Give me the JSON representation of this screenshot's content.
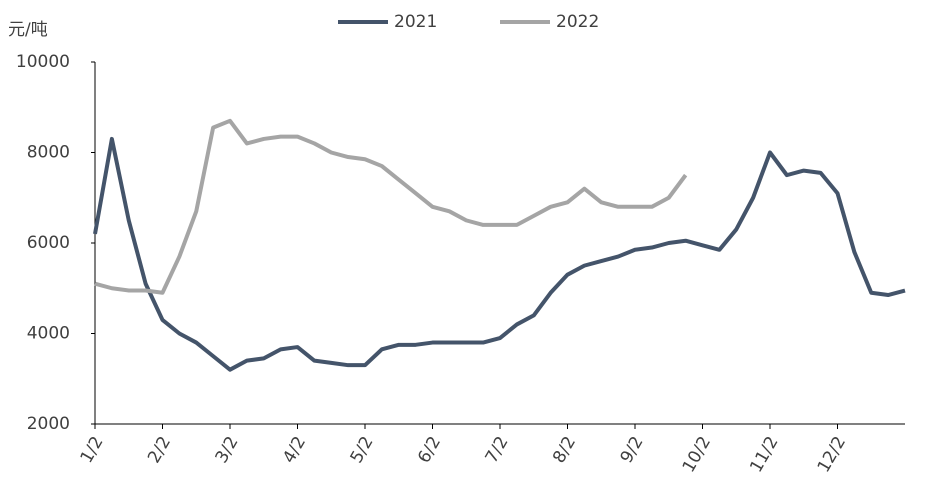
{
  "chart_data": {
    "type": "line",
    "y_label": "元/吨",
    "categories": [
      "1/2",
      null,
      null,
      null,
      "2/2",
      null,
      null,
      null,
      "3/2",
      null,
      null,
      null,
      "4/2",
      null,
      null,
      null,
      "5/2",
      null,
      null,
      null,
      "6/2",
      null,
      null,
      null,
      "7/2",
      null,
      null,
      null,
      "8/2",
      null,
      null,
      null,
      "9/2",
      null,
      null,
      null,
      "10/2",
      null,
      null,
      null,
      "11/2",
      null,
      null,
      null,
      "12/2",
      null,
      null,
      null,
      null
    ],
    "series": [
      {
        "name": "2021",
        "color": "#44546a",
        "values": [
          6200,
          8300,
          6500,
          5100,
          4300,
          4000,
          3800,
          3500,
          3200,
          3400,
          3450,
          3650,
          3700,
          3400,
          3350,
          3300,
          3300,
          3650,
          3750,
          3750,
          3800,
          3800,
          3800,
          3800,
          3900,
          4200,
          4400,
          4900,
          5300,
          5500,
          5600,
          5700,
          5850,
          5900,
          6000,
          6050,
          5950,
          5850,
          6300,
          7000,
          8000,
          7500,
          7600,
          7550,
          7100,
          5800,
          4900,
          4850,
          4950
        ]
      },
      {
        "name": "2022",
        "color": "#a5a5a5",
        "values": [
          5100,
          5000,
          4950,
          4950,
          4900,
          5700,
          6700,
          8550,
          8700,
          8200,
          8300,
          8350,
          8350,
          8200,
          8000,
          7900,
          7850,
          7700,
          7400,
          7100,
          6800,
          6700,
          6500,
          6400,
          6400,
          6400,
          6600,
          6800,
          6900,
          7200,
          6900,
          6800,
          6800,
          6800,
          7000,
          7500,
          null,
          null,
          null,
          null,
          null,
          null,
          null,
          null,
          null,
          null,
          null,
          null,
          null
        ]
      }
    ],
    "ylim": [
      2000,
      10000
    ],
    "yticks": [
      2000,
      4000,
      6000,
      8000,
      10000
    ]
  }
}
